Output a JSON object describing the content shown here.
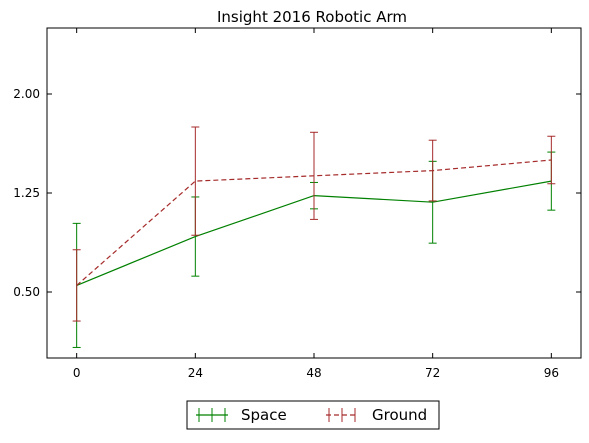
{
  "chart_data": {
    "type": "line",
    "title": "Insight 2016 Robotic Arm",
    "xlabel": "",
    "ylabel": "",
    "x": [
      0,
      24,
      48,
      72,
      96
    ],
    "x_ticks": [
      0,
      24,
      48,
      72,
      96
    ],
    "y_ticks": [
      0.5,
      1.25,
      2.0
    ],
    "y_tick_labels": [
      "0.50",
      "1.25",
      "2.00"
    ],
    "xlim": [
      -6,
      102
    ],
    "ylim": [
      0.0,
      2.5
    ],
    "grid": false,
    "legend_position": "bottom-center",
    "series": [
      {
        "name": "Space",
        "color": "#008000",
        "line_style": "solid",
        "values": [
          0.55,
          0.92,
          1.23,
          1.18,
          1.34
        ],
        "error": [
          0.47,
          0.3,
          0.1,
          0.31,
          0.22
        ]
      },
      {
        "name": "Ground",
        "color": "#a52a2a",
        "line_style": "dashed",
        "values": [
          0.55,
          1.34,
          1.38,
          1.42,
          1.5
        ],
        "error": [
          0.27,
          0.41,
          0.33,
          0.23,
          0.18
        ]
      }
    ]
  }
}
